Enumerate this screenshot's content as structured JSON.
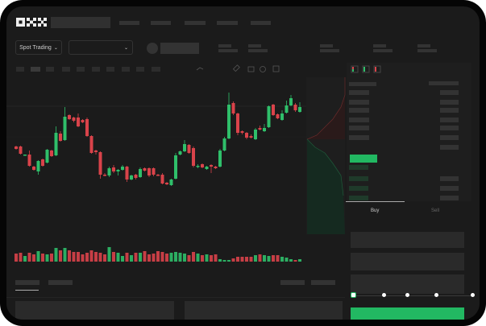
{
  "header": {
    "logo": "OKX"
  },
  "market": {
    "mode_button": "Spot Trading",
    "pair_select": ""
  },
  "trade": {
    "tabs": [
      {
        "label": "Buy",
        "active": true
      },
      {
        "label": "Sell",
        "active": false
      }
    ],
    "slider_value_percent": 0
  },
  "colors": {
    "up": "#2fbf6a",
    "down": "#d9434a",
    "accent": "#22b862"
  },
  "icons": [
    "chevron-down-icon",
    "line-icon",
    "ruler-icon",
    "camera-icon",
    "settings-icon",
    "fullscreen-icon",
    "orderbook-both-icon",
    "orderbook-bids-icon",
    "orderbook-asks-icon"
  ],
  "chart_data": {
    "type": "candlestick",
    "candles": [
      [
        118,
        119,
        114,
        115
      ],
      [
        118,
        119,
        108,
        109
      ],
      [
        107,
        108,
        107,
        108
      ],
      [
        108,
        113,
        93,
        94
      ],
      [
        93,
        94,
        88,
        89
      ],
      [
        87,
        101,
        83,
        100
      ],
      [
        102,
        103,
        93,
        94
      ],
      [
        98,
        115,
        97,
        114
      ],
      [
        113,
        114,
        105,
        106
      ],
      [
        107,
        143,
        106,
        135
      ],
      [
        134,
        137,
        124,
        125
      ],
      [
        126,
        167,
        125,
        155
      ],
      [
        157,
        158,
        151,
        152
      ],
      [
        154,
        155,
        148,
        150
      ],
      [
        154,
        159,
        142,
        143
      ],
      [
        151,
        152,
        147,
        148
      ],
      [
        152,
        154,
        130,
        131
      ],
      [
        131,
        132,
        109,
        110
      ],
      [
        113,
        114,
        108,
        111
      ],
      [
        111,
        112,
        78,
        83
      ],
      [
        83,
        85,
        81,
        82
      ],
      [
        82,
        93,
        80,
        91
      ],
      [
        92,
        95,
        85,
        87
      ],
      [
        87,
        90,
        82,
        89
      ],
      [
        89,
        95,
        88,
        93
      ],
      [
        93,
        94,
        74,
        77
      ],
      [
        77,
        83,
        76,
        82
      ],
      [
        83,
        84,
        77,
        79
      ],
      [
        80,
        92,
        79,
        90
      ],
      [
        91,
        92,
        87,
        88
      ],
      [
        91,
        92,
        80,
        82
      ],
      [
        91,
        92,
        81,
        83
      ],
      [
        83,
        84,
        82,
        82
      ],
      [
        83,
        85,
        71,
        72
      ],
      [
        73,
        74,
        70,
        71
      ],
      [
        70,
        78,
        69,
        77
      ],
      [
        78,
        110,
        77,
        107
      ],
      [
        108,
        113,
        107,
        112
      ],
      [
        112,
        126,
        111,
        121
      ],
      [
        120,
        121,
        109,
        110
      ],
      [
        116,
        118,
        92,
        94
      ],
      [
        93,
        96,
        91,
        94
      ],
      [
        96,
        97,
        91,
        92
      ],
      [
        90,
        94,
        89,
        93
      ],
      [
        95,
        96,
        85,
        93
      ],
      [
        93,
        94,
        90,
        91
      ],
      [
        93,
        115,
        92,
        113
      ],
      [
        113,
        130,
        112,
        128
      ],
      [
        128,
        185,
        127,
        170
      ],
      [
        172,
        174,
        157,
        159
      ],
      [
        159,
        160,
        132,
        135
      ],
      [
        137,
        138,
        133,
        135
      ],
      [
        135,
        136,
        127,
        129
      ],
      [
        131,
        133,
        128,
        129
      ],
      [
        127,
        141,
        126,
        139
      ],
      [
        141,
        144,
        138,
        139
      ],
      [
        137,
        146,
        136,
        141
      ],
      [
        142,
        169,
        141,
        168
      ],
      [
        170,
        171,
        156,
        157
      ],
      [
        158,
        159,
        152,
        153
      ],
      [
        151,
        163,
        150,
        159
      ],
      [
        160,
        175,
        159,
        169
      ],
      [
        169,
        182,
        168,
        178
      ],
      [
        170,
        172,
        161,
        163
      ],
      [
        161,
        173,
        160,
        167
      ]
    ],
    "volume": [
      10,
      11,
      7,
      11,
      9,
      13,
      10,
      9,
      10,
      17,
      14,
      17,
      14,
      12,
      12,
      9,
      11,
      14,
      12,
      11,
      9,
      18,
      12,
      11,
      7,
      11,
      8,
      11,
      11,
      13,
      9,
      10,
      13,
      12,
      10,
      11,
      12,
      11,
      10,
      8,
      12,
      10,
      8,
      9,
      8,
      9,
      3,
      2,
      2,
      4,
      6,
      6,
      6,
      6,
      8,
      9,
      8,
      7,
      8,
      8,
      6,
      5,
      3,
      2,
      3
    ],
    "price_line": 168
  }
}
